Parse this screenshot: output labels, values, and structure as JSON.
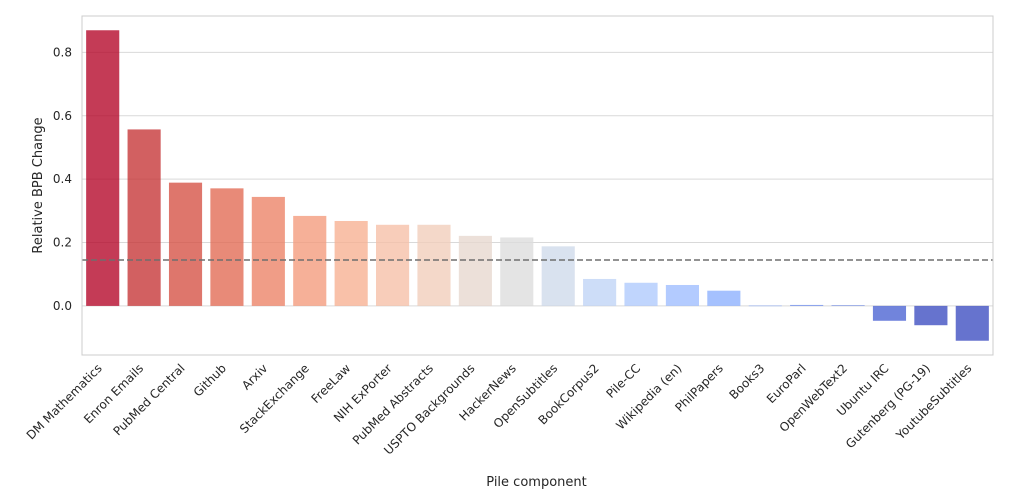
{
  "chart_data": {
    "type": "bar",
    "title": "",
    "xlabel": "Pile component",
    "ylabel": "Relative BPB Change",
    "ylim": [
      -0.155,
      0.915
    ],
    "yticks": [
      0.0,
      0.2,
      0.4,
      0.6,
      0.8
    ],
    "ytick_labels": [
      "0.0",
      "0.2",
      "0.4",
      "0.6",
      "0.8"
    ],
    "grid": true,
    "reference_line": 0.145,
    "categories": [
      "DM Mathematics",
      "Enron Emails",
      "PubMed Central",
      "Github",
      "Arxiv",
      "StackExchange",
      "FreeLaw",
      "NIH ExPorter",
      "PubMed Abstracts",
      "USPTO Backgrounds",
      "HackerNews",
      "OpenSubtitles",
      "BookCorpus2",
      "Pile-CC",
      "Wikipedia (en)",
      "PhilPapers",
      "Books3",
      "EuroParl",
      "OpenWebText2",
      "Ubuntu IRC",
      "Gutenberg (PG-19)",
      "YoutubeSubtitles"
    ],
    "values": [
      0.87,
      0.557,
      0.389,
      0.371,
      0.344,
      0.284,
      0.268,
      0.256,
      0.256,
      0.221,
      0.216,
      0.188,
      0.085,
      0.073,
      0.066,
      0.048,
      0.001,
      0.003,
      0.002,
      -0.047,
      -0.061,
      -0.11
    ],
    "colors": [
      "#b40426",
      "#c53334",
      "#d55042",
      "#e26952",
      "#ec8165",
      "#f49a7b",
      "#f7af91",
      "#f6bfa6",
      "#f1cdba",
      "#e7d7ce",
      "#dcdddd",
      "#cedaeb",
      "#bfd3f6",
      "#aec9fc",
      "#9dbdff",
      "#8caffe",
      "#7b9ff9",
      "#6a8bef",
      "#5a78e4",
      "#4961d2",
      "#3b4cc0",
      "#3b4cc0"
    ],
    "bar_alpha": 0.78
  }
}
